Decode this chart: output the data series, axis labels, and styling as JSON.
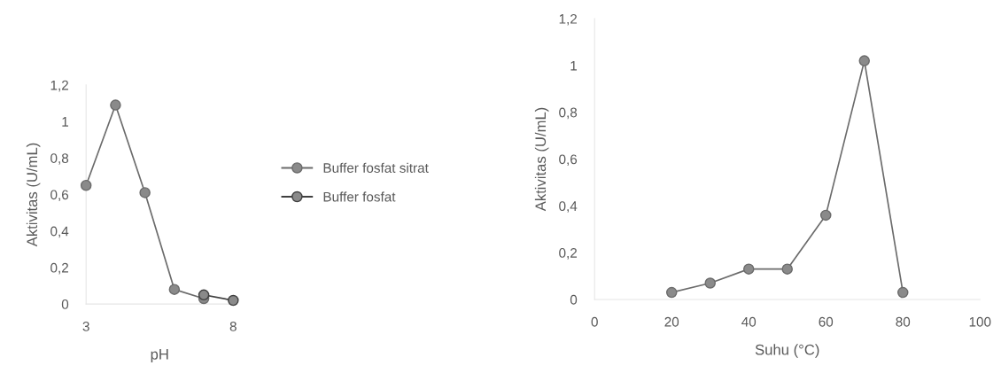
{
  "chart_data": [
    {
      "type": "line",
      "xlabel": "pH",
      "ylabel": "Aktivitas (U/mL)",
      "xlim": [
        3,
        8
      ],
      "xticks": [
        3,
        8
      ],
      "ylim": [
        0,
        1.2
      ],
      "yticks": [
        {
          "value": 0,
          "label": "0"
        },
        {
          "value": 0.2,
          "label": "0,2"
        },
        {
          "value": 0.4,
          "label": "0,4"
        },
        {
          "value": 0.6,
          "label": "0,6"
        },
        {
          "value": 0.8,
          "label": "0,8"
        },
        {
          "value": 1,
          "label": "1"
        },
        {
          "value": 1.2,
          "label": "1,2"
        }
      ],
      "grid": false,
      "legend": "right",
      "marker": "circle",
      "line_style": "solid",
      "series": [
        {
          "name": "Buffer fosfat sitrat",
          "color": "#6b6b6b",
          "x": [
            3,
            4,
            5,
            6,
            7
          ],
          "values": [
            0.65,
            1.09,
            0.61,
            0.08,
            0.03
          ]
        },
        {
          "name": "Buffer fosfat",
          "color": "#404040",
          "x": [
            7,
            8
          ],
          "values": [
            0.05,
            0.02
          ]
        }
      ]
    },
    {
      "type": "line",
      "xlabel": "Suhu (°C)",
      "ylabel": "Aktivitas (U/mL)",
      "xlim": [
        0,
        100
      ],
      "xticks": [
        0,
        20,
        40,
        60,
        80,
        100
      ],
      "ylim": [
        0,
        1.2
      ],
      "yticks": [
        {
          "value": 0,
          "label": "0"
        },
        {
          "value": 0.2,
          "label": "0,2"
        },
        {
          "value": 0.4,
          "label": "0,4"
        },
        {
          "value": 0.6,
          "label": "0,6"
        },
        {
          "value": 0.8,
          "label": "0,8"
        },
        {
          "value": 1,
          "label": "1"
        },
        {
          "value": 1.2,
          "label": "1,2"
        }
      ],
      "grid": false,
      "marker": "circle",
      "line_style": "solid",
      "series": [
        {
          "color": "#6b6b6b",
          "x": [
            20,
            30,
            40,
            50,
            60,
            70,
            80
          ],
          "values": [
            0.03,
            0.07,
            0.13,
            0.13,
            0.36,
            1.02,
            0.03
          ]
        }
      ]
    }
  ]
}
